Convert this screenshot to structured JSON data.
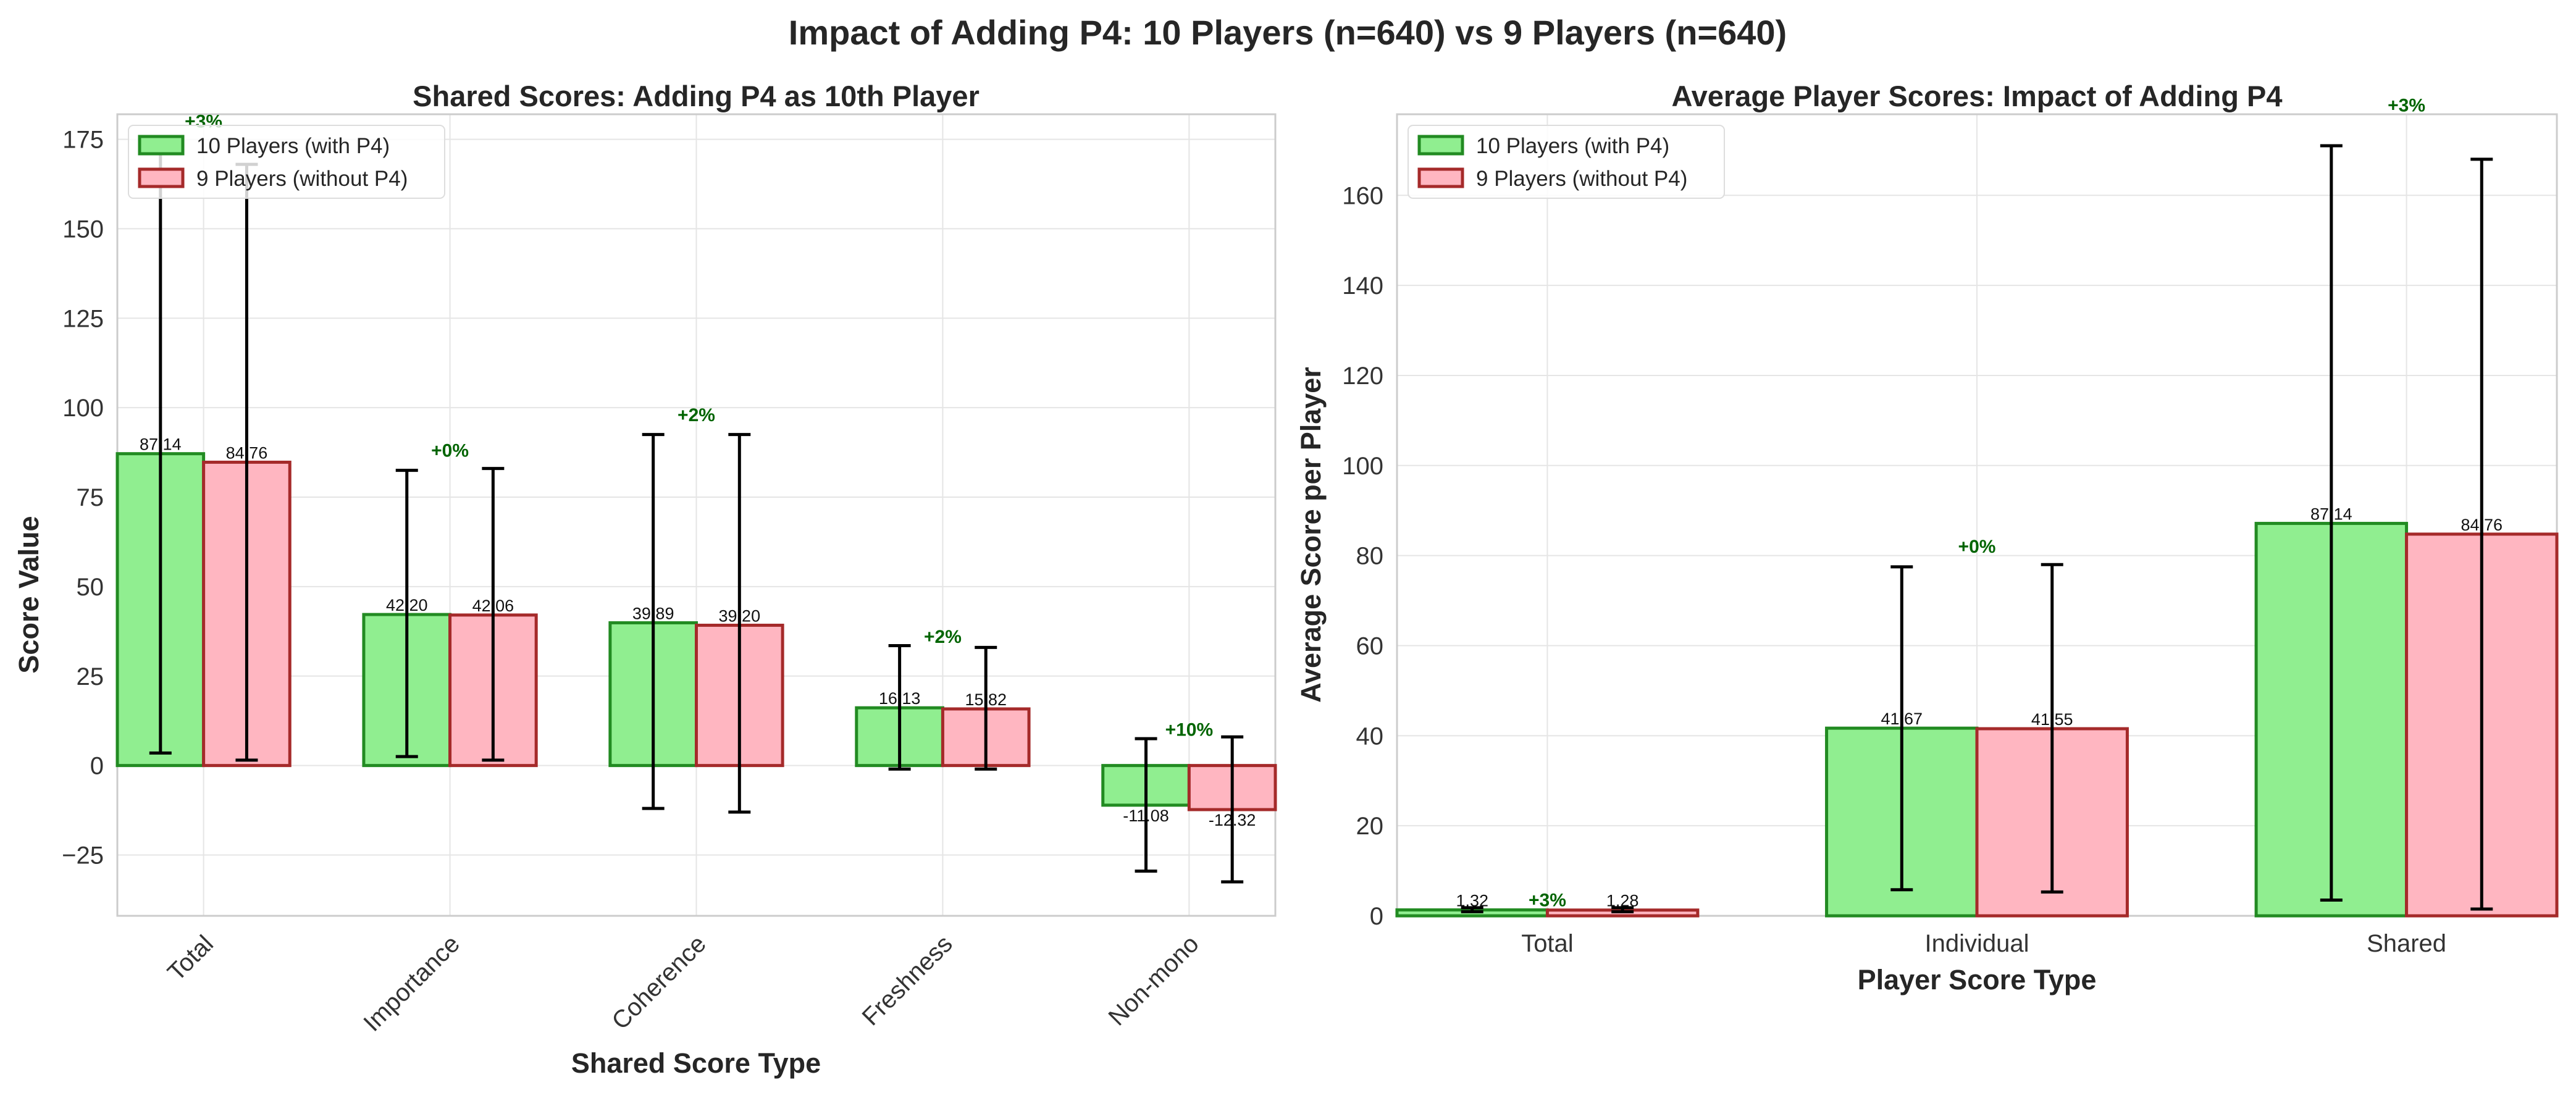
{
  "figure": {
    "title": "Impact of Adding P4: 10 Players (n=640) vs 9 Players (n=640)"
  },
  "colors": {
    "with_fill": "#90EE90",
    "with_edge": "#228B22",
    "without_fill": "#FFB6C1",
    "without_edge": "#A52A2A",
    "pct_text": "#006400",
    "grid": "#e5e5e5"
  },
  "chart_data": [
    {
      "type": "bar",
      "title": "Shared Scores: Adding P4 as 10th Player",
      "xlabel": "Shared Score Type",
      "ylabel": "Score Value",
      "categories": [
        "Total",
        "Importance",
        "Coherence",
        "Freshness",
        "Non-mono"
      ],
      "ylim": [
        -42,
        182
      ],
      "yticks": [
        -25,
        0,
        25,
        50,
        75,
        100,
        125,
        150,
        175
      ],
      "xtick_rotation": 45,
      "grid": true,
      "legend_position": "top-left",
      "series": [
        {
          "name": "10 Players (with P4)",
          "values": [
            87.14,
            42.2,
            39.89,
            16.13,
            -11.08
          ],
          "labels": [
            "87.14",
            "42.20",
            "39.89",
            "16.13",
            "-11.08"
          ],
          "err_low": [
            3.5,
            2.5,
            -12,
            -1,
            -29.5
          ],
          "err_high": [
            171,
            82.5,
            92.5,
            33.5,
            7.5
          ]
        },
        {
          "name": "9 Players (without P4)",
          "values": [
            84.76,
            42.06,
            39.2,
            15.82,
            -12.32
          ],
          "labels": [
            "84.76",
            "42.06",
            "39.20",
            "15.82",
            "-12.32"
          ],
          "err_low": [
            1.5,
            1.5,
            -13,
            -1,
            -32.5
          ],
          "err_high": [
            168,
            83,
            92.5,
            33,
            8
          ]
        }
      ],
      "pct_labels": [
        "+3%",
        "+0%",
        "+2%",
        "+2%",
        "+10%"
      ],
      "pct_label_y": [
        180,
        88,
        98,
        36,
        10
      ]
    },
    {
      "type": "bar",
      "title": "Average Player Scores: Impact of Adding P4",
      "xlabel": "Player Score Type",
      "ylabel": "Average Score per Player",
      "categories": [
        "Total",
        "Individual",
        "Shared"
      ],
      "ylim": [
        0,
        178
      ],
      "yticks": [
        0,
        20,
        40,
        60,
        80,
        100,
        120,
        140,
        160
      ],
      "xtick_rotation": 0,
      "grid": true,
      "legend_position": "top-left",
      "series": [
        {
          "name": "10 Players (with P4)",
          "values": [
            1.32,
            41.67,
            87.14
          ],
          "labels": [
            "1.32",
            "41.67",
            "87.14"
          ],
          "err_low": [
            0.9,
            5.8,
            3.5
          ],
          "err_high": [
            1.8,
            77.5,
            171
          ]
        },
        {
          "name": "9 Players (without P4)",
          "values": [
            1.28,
            41.55,
            84.76
          ],
          "labels": [
            "1.28",
            "41.55",
            "84.76"
          ],
          "err_low": [
            0.9,
            5.3,
            1.5
          ],
          "err_high": [
            1.8,
            78,
            168
          ]
        }
      ],
      "pct_labels": [
        "+3%",
        "+0%",
        "+3%"
      ],
      "pct_label_y": [
        3.5,
        82,
        180
      ]
    }
  ]
}
